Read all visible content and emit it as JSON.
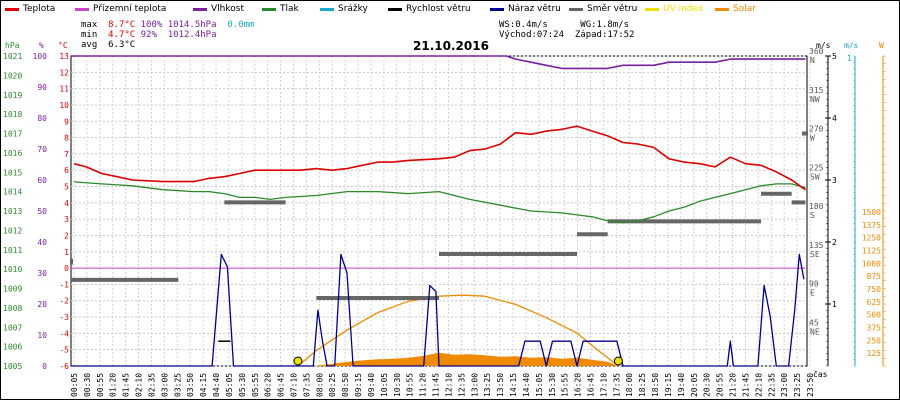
{
  "title": "21.10.2016",
  "legend": [
    {
      "label": "Teplota",
      "color": "#dd0000"
    },
    {
      "label": "Přízemní teplota",
      "color": "#cc44cc"
    },
    {
      "label": "Vlhkost",
      "color": "#7a1fa0"
    },
    {
      "label": "Tlak",
      "color": "#2a8a2a"
    },
    {
      "label": "Srážky",
      "color": "#19a8c8"
    },
    {
      "label": "Rychlost větru",
      "color": "#000000"
    },
    {
      "label": "Náraz větru",
      "color": "#000090"
    },
    {
      "label": "Směr větru",
      "color": "#666666"
    },
    {
      "label": "UV index",
      "color": "#f0e000"
    },
    {
      "label": "Solar",
      "color": "#f08a00"
    }
  ],
  "stats": {
    "max": {
      "label": "max",
      "temp": "8.7°C",
      "hum": "100%",
      "press": "1014.5hPa",
      "rain": "0.0mm"
    },
    "min": {
      "label": "min",
      "temp": "4.7°C",
      "hum": "92%",
      "press": "1012.4hPa"
    },
    "avg": {
      "label": "avg",
      "temp": "6.3°C"
    }
  },
  "wind_info": {
    "ws": "WS:0.4m/s",
    "wg": "WG:1.8m/s",
    "sunrise": "Východ:07:24",
    "sunset": "Západ:17:52"
  },
  "axes": {
    "left_units": [
      "hPa",
      "%",
      "°C"
    ],
    "right_units": [
      "m/s",
      "m/s",
      "W"
    ],
    "x_unit": "čas",
    "hpa_ticks": [
      "1005",
      "1006",
      "1007",
      "1008",
      "1009",
      "1010",
      "1011",
      "1012",
      "1013",
      "1014",
      "1015",
      "1016",
      "1017",
      "1018",
      "1019",
      "1020",
      "1021"
    ],
    "pct_ticks": [
      "0",
      "10",
      "20",
      "30",
      "40",
      "50",
      "60",
      "70",
      "80",
      "90",
      "100"
    ],
    "temp_ticks": [
      "-6",
      "-5",
      "-4",
      "-3",
      "-2",
      "-1",
      "0",
      "1",
      "2",
      "3",
      "4",
      "5",
      "6",
      "7",
      "8",
      "9",
      "10",
      "11",
      "12",
      "13"
    ],
    "direction_ticks": [
      {
        "deg": "45",
        "dir": "NE"
      },
      {
        "deg": "90",
        "dir": "E"
      },
      {
        "deg": "135",
        "dir": "SE"
      },
      {
        "deg": "180",
        "dir": "S"
      },
      {
        "deg": "225",
        "dir": "SW"
      },
      {
        "deg": "270",
        "dir": "W"
      },
      {
        "deg": "315",
        "dir": "NW"
      },
      {
        "deg": "360",
        "dir": "N"
      }
    ],
    "wind_ticks": [
      "1",
      "2",
      "3",
      "4",
      "5"
    ],
    "wind2_ticks": [
      "1"
    ],
    "solar_ticks": [
      "125",
      "250",
      "375",
      "500",
      "625",
      "750",
      "875",
      "1000",
      "1125",
      "1250",
      "1375",
      "1500"
    ],
    "x_ticks": [
      "00:05",
      "00:30",
      "00:55",
      "01:20",
      "01:45",
      "02:10",
      "02:35",
      "03:00",
      "03:25",
      "03:50",
      "04:15",
      "04:40",
      "05:05",
      "05:30",
      "05:55",
      "06:20",
      "06:45",
      "07:10",
      "07:35",
      "08:00",
      "08:25",
      "08:50",
      "09:15",
      "09:40",
      "10:05",
      "10:30",
      "10:55",
      "11:20",
      "11:45",
      "12:10",
      "12:35",
      "13:00",
      "13:25",
      "13:50",
      "14:15",
      "14:40",
      "15:05",
      "15:30",
      "15:55",
      "16:20",
      "16:45",
      "17:10",
      "17:35",
      "18:00",
      "18:25",
      "18:50",
      "19:15",
      "19:40",
      "20:05",
      "20:30",
      "20:55",
      "21:20",
      "21:45",
      "22:10",
      "22:35",
      "23:00",
      "23:25",
      "23:50"
    ]
  },
  "chart_data": {
    "type": "line",
    "title": "21.10.2016",
    "x_unit": "čas",
    "x_range": [
      "00:05",
      "23:55"
    ],
    "series": [
      {
        "name": "Teplota",
        "unit": "°C",
        "color": "#dd0000",
        "points": [
          [
            0.1,
            6.4
          ],
          [
            0.5,
            6.2
          ],
          [
            1,
            5.8
          ],
          [
            1.5,
            5.6
          ],
          [
            2,
            5.4
          ],
          [
            3,
            5.3
          ],
          [
            4,
            5.3
          ],
          [
            4.5,
            5.5
          ],
          [
            5,
            5.6
          ],
          [
            5.5,
            5.8
          ],
          [
            6,
            6.0
          ],
          [
            6.5,
            6.0
          ],
          [
            7,
            6.0
          ],
          [
            7.5,
            6.0
          ],
          [
            8,
            6.1
          ],
          [
            8.5,
            6.0
          ],
          [
            9,
            6.1
          ],
          [
            9.5,
            6.3
          ],
          [
            10,
            6.5
          ],
          [
            10.5,
            6.5
          ],
          [
            11,
            6.6
          ],
          [
            12,
            6.7
          ],
          [
            12.5,
            6.8
          ],
          [
            13,
            7.2
          ],
          [
            13.5,
            7.3
          ],
          [
            14,
            7.6
          ],
          [
            14.5,
            8.3
          ],
          [
            15,
            8.2
          ],
          [
            15.5,
            8.4
          ],
          [
            16,
            8.5
          ],
          [
            16.5,
            8.7
          ],
          [
            17,
            8.4
          ],
          [
            17.5,
            8.1
          ],
          [
            18,
            7.7
          ],
          [
            18.5,
            7.6
          ],
          [
            19,
            7.4
          ],
          [
            19.5,
            6.7
          ],
          [
            20,
            6.5
          ],
          [
            20.5,
            6.4
          ],
          [
            21,
            6.2
          ],
          [
            21.5,
            6.8
          ],
          [
            22,
            6.4
          ],
          [
            22.5,
            6.3
          ],
          [
            23,
            5.9
          ],
          [
            23.5,
            5.4
          ],
          [
            23.95,
            4.8
          ]
        ]
      },
      {
        "name": "Tlak",
        "unit": "hPa",
        "color": "#2a8a2a",
        "points": [
          [
            0.1,
            1014.5
          ],
          [
            1,
            1014.4
          ],
          [
            2,
            1014.3
          ],
          [
            3,
            1014.1
          ],
          [
            4,
            1014.0
          ],
          [
            4.5,
            1014.0
          ],
          [
            5,
            1013.9
          ],
          [
            5.5,
            1013.7
          ],
          [
            6,
            1013.7
          ],
          [
            6.5,
            1013.6
          ],
          [
            7,
            1013.7
          ],
          [
            8,
            1013.8
          ],
          [
            9,
            1014.0
          ],
          [
            10,
            1014.0
          ],
          [
            11,
            1013.9
          ],
          [
            12,
            1014.0
          ],
          [
            12.5,
            1013.8
          ],
          [
            13,
            1013.6
          ],
          [
            14,
            1013.3
          ],
          [
            15,
            1013.0
          ],
          [
            16,
            1012.9
          ],
          [
            16.5,
            1012.8
          ],
          [
            17,
            1012.7
          ],
          [
            17.5,
            1012.5
          ],
          [
            18,
            1012.4
          ],
          [
            18.5,
            1012.5
          ],
          [
            19,
            1012.7
          ],
          [
            19.5,
            1013.0
          ],
          [
            20,
            1013.2
          ],
          [
            20.5,
            1013.5
          ],
          [
            21,
            1013.7
          ],
          [
            21.5,
            1013.9
          ],
          [
            22,
            1014.1
          ],
          [
            22.5,
            1014.3
          ],
          [
            23,
            1014.4
          ],
          [
            23.5,
            1014.4
          ],
          [
            23.95,
            1014.2
          ]
        ]
      },
      {
        "name": "Vlhkost",
        "unit": "%",
        "color": "#7a1fa0",
        "points": [
          [
            0,
            100
          ],
          [
            1,
            100
          ],
          [
            4,
            100
          ],
          [
            8,
            100
          ],
          [
            12,
            100
          ],
          [
            14.2,
            100
          ],
          [
            14.5,
            99
          ],
          [
            15,
            98
          ],
          [
            15.5,
            97
          ],
          [
            16,
            96
          ],
          [
            16.3,
            96
          ],
          [
            17,
            96
          ],
          [
            17.5,
            96
          ],
          [
            18,
            97
          ],
          [
            18.5,
            97
          ],
          [
            19,
            97
          ],
          [
            19.5,
            98
          ],
          [
            20,
            98
          ],
          [
            20.5,
            98
          ],
          [
            21,
            98
          ],
          [
            21.5,
            99
          ],
          [
            22,
            99
          ],
          [
            22.5,
            99
          ],
          [
            23,
            99
          ],
          [
            23.95,
            99
          ]
        ]
      },
      {
        "name": "Přízemní teplota",
        "unit": "°C",
        "color": "#cc44cc",
        "points": [
          [
            0,
            0.0
          ],
          [
            23.95,
            0.0
          ]
        ]
      },
      {
        "name": "Náraz větru",
        "unit": "m/s",
        "color": "#000090",
        "points": [
          [
            0,
            0
          ],
          [
            4.6,
            0
          ],
          [
            4.9,
            1.8
          ],
          [
            5.1,
            1.6
          ],
          [
            5.3,
            0
          ],
          [
            7.9,
            0
          ],
          [
            8.05,
            0.9
          ],
          [
            8.2,
            0.4
          ],
          [
            8.35,
            0
          ],
          [
            8.6,
            0
          ],
          [
            8.8,
            1.8
          ],
          [
            9.0,
            1.5
          ],
          [
            9.2,
            0
          ],
          [
            11.5,
            0
          ],
          [
            11.7,
            1.3
          ],
          [
            11.9,
            1.2
          ],
          [
            12.0,
            0
          ],
          [
            14.6,
            0
          ],
          [
            14.8,
            0.4
          ],
          [
            15.0,
            0.4
          ],
          [
            15.3,
            0.4
          ],
          [
            15.5,
            0
          ],
          [
            15.7,
            0.4
          ],
          [
            16,
            0.4
          ],
          [
            16.3,
            0.4
          ],
          [
            16.5,
            0
          ],
          [
            16.7,
            0.4
          ],
          [
            17,
            0.4
          ],
          [
            17.4,
            0.4
          ],
          [
            17.6,
            0.4
          ],
          [
            17.8,
            0.4
          ],
          [
            18,
            0
          ],
          [
            21.4,
            0
          ],
          [
            21.5,
            0.4
          ],
          [
            21.6,
            0
          ],
          [
            22.4,
            0
          ],
          [
            22.6,
            1.3
          ],
          [
            22.8,
            0.8
          ],
          [
            23.0,
            0
          ],
          [
            23.4,
            0
          ],
          [
            23.6,
            0.9
          ],
          [
            23.75,
            1.8
          ],
          [
            23.9,
            1.4
          ]
        ]
      },
      {
        "name": "Rychlost větru",
        "unit": "m/s",
        "color": "#000000",
        "points": [
          [
            4.8,
            0.4
          ],
          [
            5.2,
            0.4
          ]
        ]
      },
      {
        "name": "Směr větru",
        "unit": "°",
        "color": "#666666",
        "segments": [
          [
            0,
            3.5,
            100
          ],
          [
            5,
            7,
            190
          ],
          [
            8,
            12,
            79
          ],
          [
            12,
            16.5,
            130
          ],
          [
            16.5,
            17.5,
            153
          ],
          [
            17.5,
            22.5,
            168
          ],
          [
            22.5,
            23.5,
            200
          ],
          [
            23.5,
            23.95,
            190
          ]
        ]
      },
      {
        "name": "Solar",
        "unit": "W",
        "color": "#f08a00",
        "curve_points": [
          [
            7.4,
            0
          ],
          [
            8,
            150
          ],
          [
            9,
            350
          ],
          [
            10,
            520
          ],
          [
            11,
            630
          ],
          [
            12,
            680
          ],
          [
            12.8,
            690
          ],
          [
            13.5,
            680
          ],
          [
            14.5,
            600
          ],
          [
            15.5,
            470
          ],
          [
            16.5,
            320
          ],
          [
            17.2,
            150
          ],
          [
            17.85,
            0
          ]
        ],
        "fill_points": [
          [
            7.9,
            0
          ],
          [
            8.5,
            20
          ],
          [
            9,
            40
          ],
          [
            9.5,
            55
          ],
          [
            10,
            65
          ],
          [
            10.5,
            70
          ],
          [
            11,
            80
          ],
          [
            11.5,
            100
          ],
          [
            12,
            130
          ],
          [
            12.5,
            110
          ],
          [
            13,
            115
          ],
          [
            13.5,
            105
          ],
          [
            14,
            90
          ],
          [
            14.5,
            95
          ],
          [
            15,
            80
          ],
          [
            15.5,
            85
          ],
          [
            16,
            70
          ],
          [
            16.5,
            80
          ],
          [
            17,
            60
          ],
          [
            17.5,
            40
          ],
          [
            17.85,
            0
          ]
        ]
      },
      {
        "name": "UV index",
        "unit": "",
        "color": "#f0e000",
        "markers": [
          [
            7.4,
            0
          ],
          [
            17.85,
            0
          ]
        ]
      }
    ]
  }
}
